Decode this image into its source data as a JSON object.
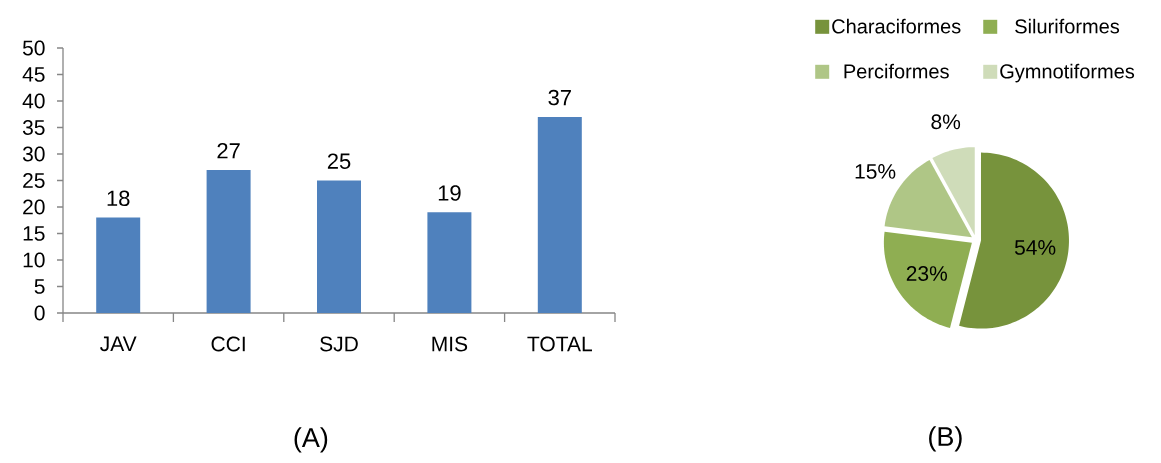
{
  "chart_data": [
    {
      "type": "bar",
      "categories": [
        "JAV",
        "CCI",
        "SJD",
        "MIS",
        "TOTAL"
      ],
      "values": [
        18,
        27,
        25,
        19,
        37
      ],
      "color": "#4f81bd",
      "ylim": [
        0,
        50
      ],
      "yticks": [
        0,
        5,
        10,
        15,
        20,
        25,
        30,
        35,
        40,
        45,
        50
      ],
      "data_labels": true,
      "annotations": [
        "(A)"
      ]
    },
    {
      "type": "pie",
      "categories": [
        "Characiformes",
        "Siluriformes",
        "Perciformes",
        "Gymnotiformes"
      ],
      "values": [
        54,
        23,
        15,
        8
      ],
      "colors": [
        "#77933c",
        "#8fae52",
        "#afc686",
        "#cfdcb9"
      ],
      "value_labels": [
        "54%",
        "23%",
        "15%",
        "8%"
      ],
      "legend": "top",
      "annotations": [
        "(B)"
      ]
    }
  ]
}
